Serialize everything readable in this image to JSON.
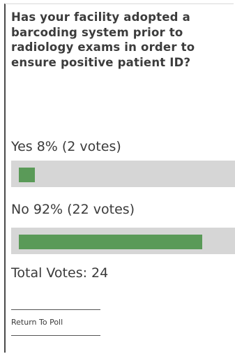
{
  "poll": {
    "question": "Has your facility adopted a barcoding system prior to radiology exams in order to ensure positive patient ID?",
    "options": [
      {
        "label": "Yes 8% (2 votes)",
        "percent": 8,
        "votes": 2
      },
      {
        "label": "No 92% (22 votes)",
        "percent": 92,
        "votes": 22
      }
    ],
    "total_label": "Total Votes: 24",
    "return_label": "Return To Poll"
  },
  "colors": {
    "bar_fill": "#5a9a58",
    "bar_track": "#d6d6d6"
  }
}
